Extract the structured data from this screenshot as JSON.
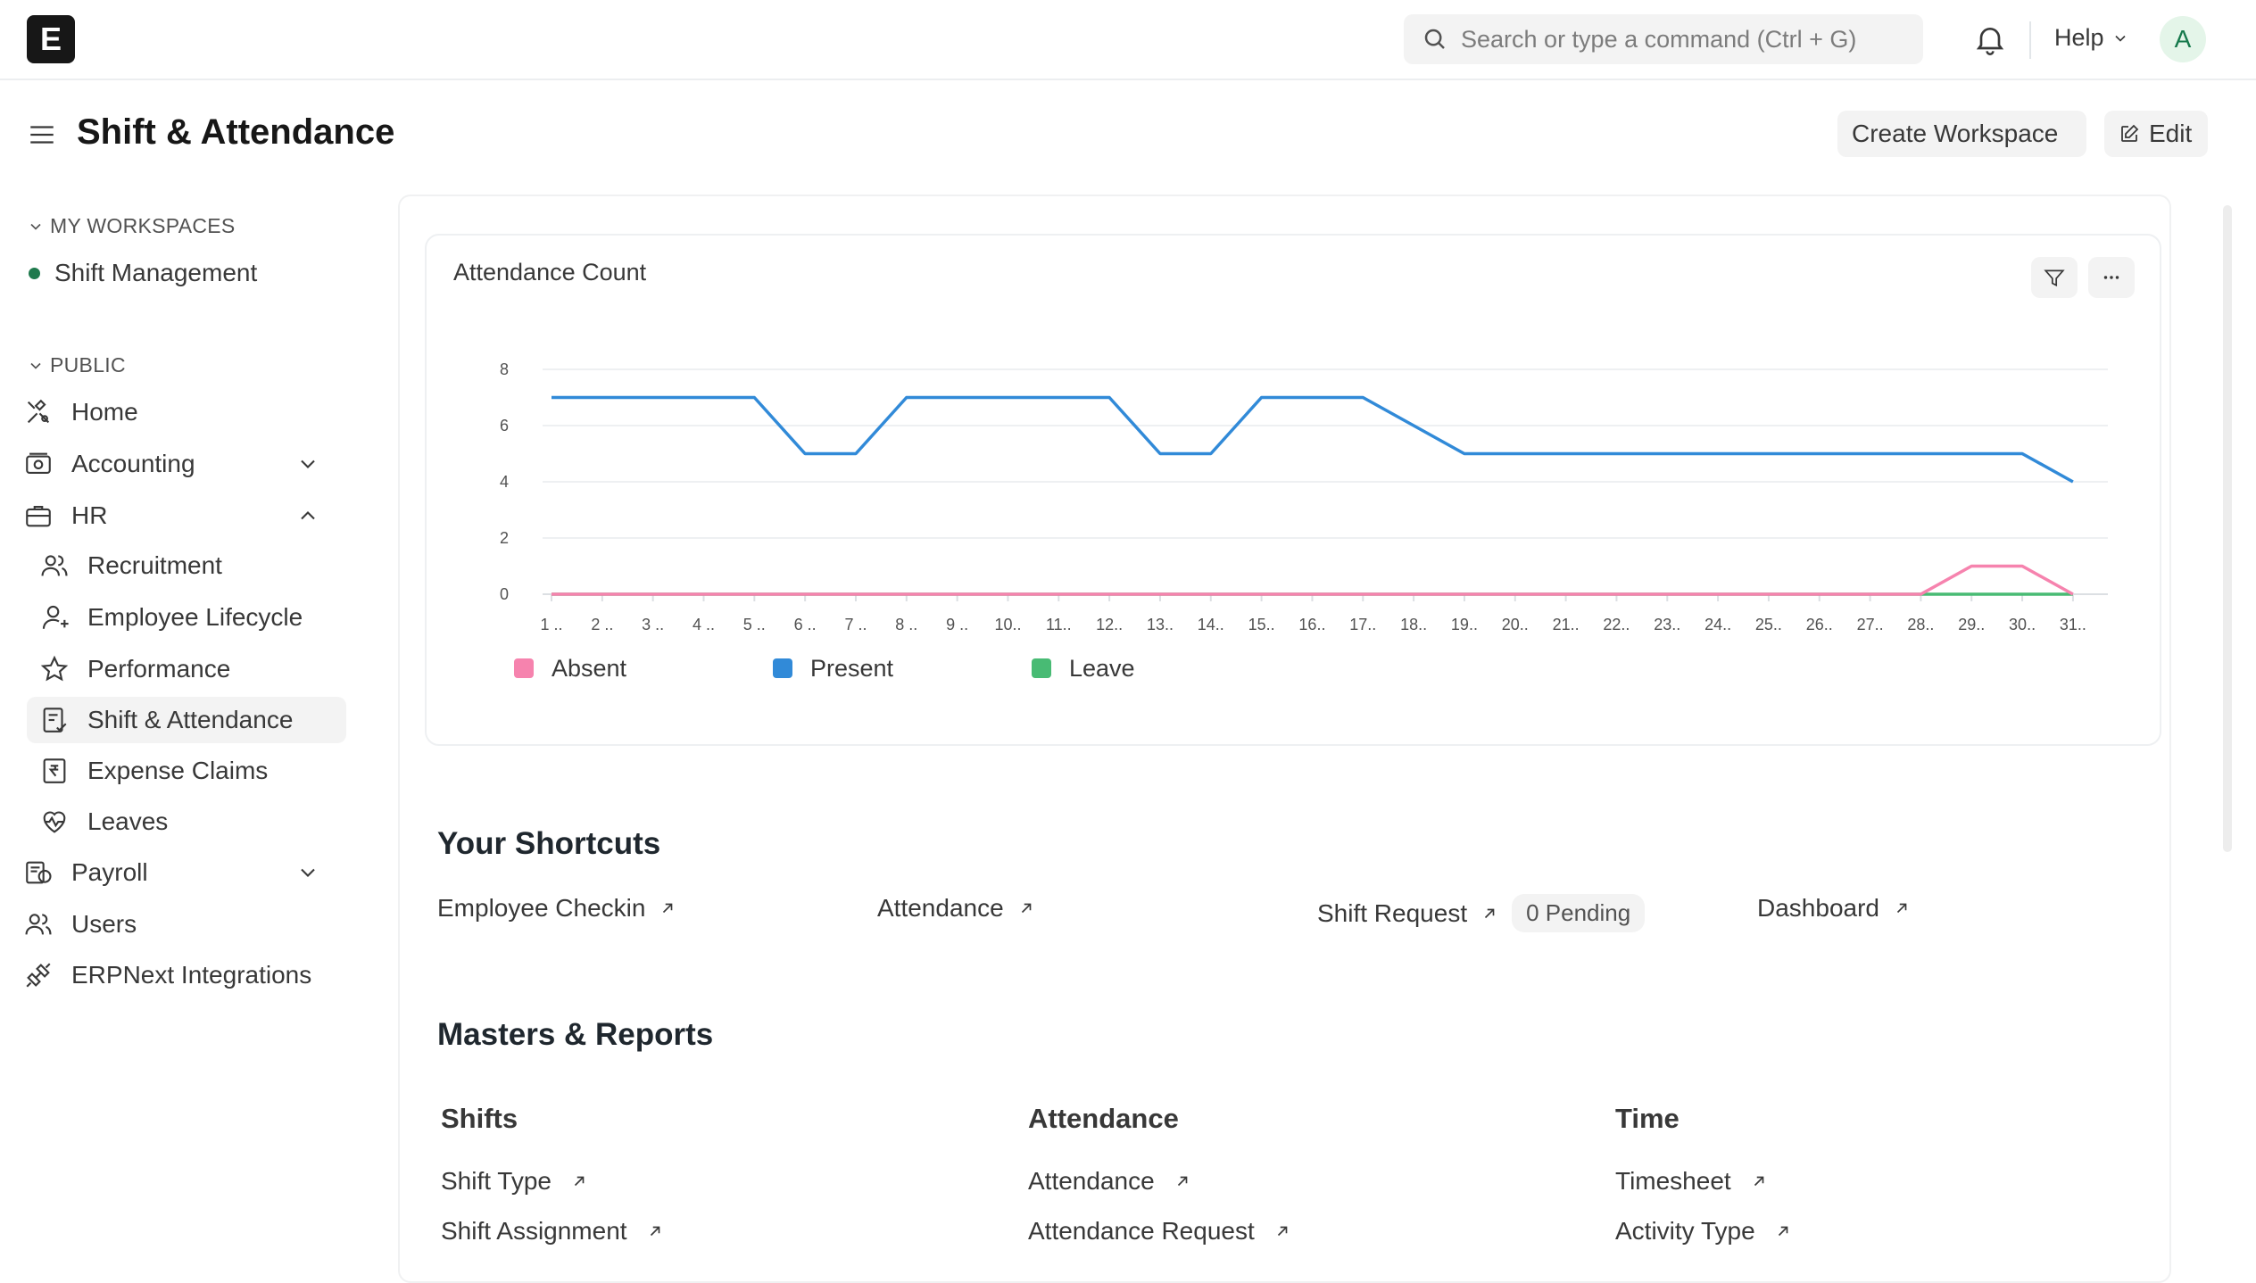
{
  "navbar": {
    "logo_letter": "E",
    "search_placeholder": "Search or type a command (Ctrl + G)",
    "help_label": "Help",
    "avatar_letter": "A"
  },
  "page": {
    "title": "Shift & Attendance",
    "create_workspace_label": "Create Workspace",
    "edit_label": "Edit"
  },
  "sidebar": {
    "my_workspaces_label": "MY WORKSPACES",
    "workspace_item": "Shift Management",
    "public_label": "PUBLIC",
    "items": [
      {
        "label": "Home",
        "icon": "tools-icon"
      },
      {
        "label": "Accounting",
        "icon": "accounting-icon"
      },
      {
        "label": "HR",
        "icon": "briefcase-icon"
      },
      {
        "label": "Recruitment",
        "icon": "users-icon"
      },
      {
        "label": "Employee Lifecycle",
        "icon": "user-icon"
      },
      {
        "label": "Performance",
        "icon": "star-icon"
      },
      {
        "label": "Shift & Attendance",
        "icon": "attendance-icon"
      },
      {
        "label": "Expense Claims",
        "icon": "rupee-icon"
      },
      {
        "label": "Leaves",
        "icon": "heart-pulse-icon"
      },
      {
        "label": "Payroll",
        "icon": "payroll-icon"
      },
      {
        "label": "Users",
        "icon": "users-icon"
      },
      {
        "label": "ERPNext Integrations",
        "icon": "integration-icon"
      }
    ]
  },
  "chart": {
    "title": "Attendance Count",
    "colors": {
      "Absent": "#f683ae",
      "Present": "#318ad8",
      "Leave": "#48bb74"
    }
  },
  "chart_data": {
    "type": "line",
    "title": "Attendance Count",
    "x": [
      "1 ..",
      "2 ..",
      "3 ..",
      "4 ..",
      "5 ..",
      "6 ..",
      "7 ..",
      "8 ..",
      "9 ..",
      "10..",
      "11..",
      "12..",
      "13..",
      "14..",
      "15..",
      "16..",
      "17..",
      "18..",
      "19..",
      "20..",
      "21..",
      "22..",
      "23..",
      "24..",
      "25..",
      "26..",
      "27..",
      "28..",
      "29..",
      "30..",
      "31.."
    ],
    "yticks": [
      0,
      2,
      4,
      6,
      8
    ],
    "ylim": [
      0,
      8
    ],
    "series": [
      {
        "name": "Absent",
        "values": [
          0,
          0,
          0,
          0,
          0,
          0,
          0,
          0,
          0,
          0,
          0,
          0,
          0,
          0,
          0,
          0,
          0,
          0,
          0,
          0,
          0,
          0,
          0,
          0,
          0,
          0,
          0,
          0,
          1,
          1,
          0
        ]
      },
      {
        "name": "Present",
        "values": [
          7,
          7,
          7,
          7,
          7,
          5,
          5,
          7,
          7,
          7,
          7,
          7,
          5,
          5,
          7,
          7,
          7,
          6,
          5,
          5,
          5,
          5,
          5,
          5,
          5,
          5,
          5,
          5,
          5,
          5,
          4
        ]
      },
      {
        "name": "Leave",
        "values": [
          0,
          0,
          0,
          0,
          0,
          0,
          0,
          0,
          0,
          0,
          0,
          0,
          0,
          0,
          0,
          0,
          0,
          0,
          0,
          0,
          0,
          0,
          0,
          0,
          0,
          0,
          0,
          0,
          0,
          0,
          0
        ]
      }
    ],
    "grid": true,
    "legend": "bottom-left"
  },
  "shortcuts": {
    "title": "Your Shortcuts",
    "items": [
      {
        "label": "Employee Checkin"
      },
      {
        "label": "Attendance"
      },
      {
        "label": "Shift Request",
        "badge": "0 Pending"
      },
      {
        "label": "Dashboard"
      }
    ]
  },
  "masters": {
    "title": "Masters & Reports",
    "columns": [
      {
        "title": "Shifts",
        "links": [
          "Shift Type",
          "Shift Assignment"
        ]
      },
      {
        "title": "Attendance",
        "links": [
          "Attendance",
          "Attendance Request"
        ]
      },
      {
        "title": "Time",
        "links": [
          "Timesheet",
          "Activity Type"
        ]
      }
    ]
  }
}
